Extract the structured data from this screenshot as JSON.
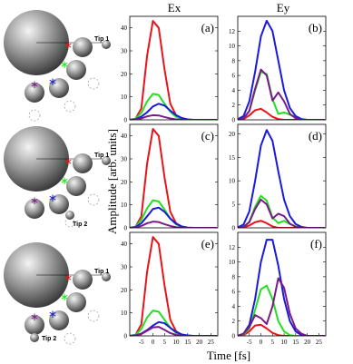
{
  "figure": {
    "column_titles": [
      "Ex",
      "Ey"
    ],
    "ylabel": "Amplitude [arb. units]",
    "xlabel": "Time [fs]"
  },
  "diagrams": [
    {
      "tip_labels": [
        "Tip 1"
      ]
    },
    {
      "tip_labels": [
        "Tip 1",
        "Tip 2"
      ]
    },
    {
      "tip_labels": [
        "Tip 1",
        "Tip 2"
      ]
    }
  ],
  "chart_data": [
    {
      "type": "line",
      "label": "(a)",
      "x": [
        -10,
        -7.5,
        -5,
        -2.5,
        0,
        2.5,
        5,
        7.5,
        10,
        12.5,
        15,
        17.5,
        20,
        22.5,
        25,
        27.5
      ],
      "xlim": [
        -10,
        28
      ],
      "ylim": [
        0,
        45
      ],
      "yticks": [
        0,
        10,
        20,
        30,
        40
      ],
      "series": [
        {
          "color": "#e8141a",
          "values": [
            0,
            0.5,
            5,
            28,
            43,
            40,
            22,
            7,
            2,
            0.5,
            0,
            0,
            0,
            0,
            0,
            0
          ]
        },
        {
          "color": "#22e01e",
          "values": [
            0,
            0.5,
            3,
            8,
            11.3,
            10.8,
            7,
            3.5,
            1.3,
            0.4,
            0.1,
            0,
            0,
            0,
            0,
            0
          ]
        },
        {
          "color": "#1a1adc",
          "values": [
            0,
            0.2,
            1.4,
            3.3,
            5.8,
            7,
            6.2,
            4,
            2,
            0.8,
            0.2,
            0,
            0,
            0,
            0,
            0
          ]
        },
        {
          "color": "#7a1a8a",
          "values": [
            0,
            0.1,
            0.6,
            1.5,
            2,
            1.9,
            1.2,
            0.6,
            0.2,
            0.1,
            0,
            0,
            0,
            0,
            0,
            0
          ]
        }
      ]
    },
    {
      "type": "line",
      "label": "(b)",
      "x": [
        -10,
        -7.5,
        -5,
        -2.5,
        0,
        2.5,
        5,
        7.5,
        10,
        12.5,
        15,
        17.5,
        20,
        22.5,
        25,
        27.5
      ],
      "xlim": [
        -10,
        28
      ],
      "ylim": [
        0,
        14
      ],
      "yticks": [
        0,
        2,
        4,
        6,
        8,
        10,
        12
      ],
      "series": [
        {
          "color": "#e8141a",
          "values": [
            0,
            0.1,
            0.6,
            1.3,
            1.5,
            1,
            0.4,
            0.1,
            0,
            0,
            0,
            0,
            0,
            0,
            0,
            0
          ]
        },
        {
          "color": "#22e01e",
          "values": [
            0,
            0.2,
            1.2,
            4,
            6.5,
            6.2,
            2.8,
            0.8,
            1,
            0.7,
            0.4,
            0.1,
            0,
            0,
            0,
            0
          ]
        },
        {
          "color": "#1a1adc",
          "values": [
            0.1,
            0.5,
            2.5,
            6.5,
            11.3,
            13.4,
            12,
            8,
            4,
            1.6,
            0.5,
            0.1,
            0,
            0,
            0,
            0
          ]
        },
        {
          "color": "#7a1a8a",
          "values": [
            0,
            0.2,
            1.2,
            4.2,
            6.8,
            6,
            2.6,
            3.7,
            2.5,
            0.8,
            0.2,
            0,
            0,
            0,
            0,
            0
          ]
        }
      ]
    },
    {
      "type": "line",
      "label": "(c)",
      "x": [
        -10,
        -7.5,
        -5,
        -2.5,
        0,
        2.5,
        5,
        7.5,
        10,
        12.5,
        15,
        17.5,
        20,
        22.5,
        25,
        27.5
      ],
      "xlim": [
        -10,
        28
      ],
      "ylim": [
        0,
        45
      ],
      "yticks": [
        0,
        10,
        20,
        30,
        40
      ],
      "series": [
        {
          "color": "#e8141a",
          "values": [
            0,
            0.5,
            5,
            28,
            43,
            40,
            22,
            7,
            2,
            0.5,
            0,
            0,
            0,
            0,
            0,
            0
          ]
        },
        {
          "color": "#22e01e",
          "values": [
            0,
            0.5,
            3.5,
            8.5,
            12,
            11.5,
            8,
            4,
            1.5,
            0.5,
            0.1,
            0,
            0,
            0,
            0,
            0
          ]
        },
        {
          "color": "#1a1adc",
          "values": [
            0,
            0.3,
            2,
            5,
            8.2,
            8.8,
            7,
            4,
            1.8,
            0.6,
            0.1,
            0,
            0,
            0,
            0,
            0
          ]
        },
        {
          "color": "#7a1a8a",
          "values": [
            0,
            0.1,
            0.8,
            2,
            2.7,
            2.5,
            1.6,
            0.8,
            0.3,
            0.1,
            0,
            0,
            0,
            0,
            0,
            0
          ]
        }
      ]
    },
    {
      "type": "line",
      "label": "(d)",
      "x": [
        -10,
        -7.5,
        -5,
        -2.5,
        0,
        2.5,
        5,
        7.5,
        10,
        12.5,
        15,
        17.5,
        20,
        22.5,
        25,
        27.5
      ],
      "xlim": [
        -10,
        28
      ],
      "ylim": [
        0,
        22
      ],
      "yticks": [
        0,
        5,
        10,
        15,
        20
      ],
      "series": [
        {
          "color": "#e8141a",
          "values": [
            0,
            0.1,
            0.5,
            1.2,
            1.5,
            1,
            0.3,
            0,
            0,
            0,
            0,
            0,
            0,
            0,
            0,
            0
          ]
        },
        {
          "color": "#22e01e",
          "values": [
            0,
            0.2,
            1.3,
            4.5,
            6.8,
            5.8,
            2.2,
            1,
            1.5,
            0.8,
            0.3,
            0.1,
            0,
            0,
            0,
            0
          ]
        },
        {
          "color": "#1a1adc",
          "values": [
            0.1,
            0.7,
            3.5,
            10,
            17.5,
            20.8,
            18.5,
            12,
            6,
            2.5,
            0.8,
            0.2,
            0,
            0,
            0,
            0
          ]
        },
        {
          "color": "#7a1a8a",
          "values": [
            0,
            0.2,
            1.2,
            4,
            6,
            5,
            2,
            3,
            2.5,
            0.9,
            0.2,
            0,
            0,
            0,
            0,
            0
          ]
        }
      ]
    },
    {
      "type": "line",
      "label": "(e)",
      "x": [
        -10,
        -7.5,
        -5,
        -2.5,
        0,
        2.5,
        5,
        7.5,
        10,
        12.5,
        15,
        17.5,
        20,
        22.5,
        25,
        27.5
      ],
      "xlim": [
        -10,
        28
      ],
      "ylim": [
        0,
        45
      ],
      "yticks": [
        0,
        10,
        20,
        30,
        40
      ],
      "xticks": [
        -5,
        0,
        5,
        10,
        15,
        20,
        25
      ],
      "series": [
        {
          "color": "#e8141a",
          "values": [
            0,
            0.5,
            5,
            28,
            43,
            40,
            22,
            7,
            2,
            0.5,
            0,
            0,
            0,
            0,
            0,
            0
          ]
        },
        {
          "color": "#22e01e",
          "values": [
            0,
            0.5,
            3,
            8,
            11,
            10.5,
            7,
            3.5,
            1.3,
            0.4,
            0.1,
            0,
            0,
            0,
            0,
            0
          ]
        },
        {
          "color": "#1a1adc",
          "values": [
            0,
            0.2,
            1,
            2.5,
            4.5,
            6,
            5.5,
            3.5,
            1.7,
            0.6,
            0.2,
            0,
            0,
            0,
            0,
            0
          ]
        },
        {
          "color": "#7a1a8a",
          "values": [
            0,
            0.1,
            0.8,
            2.2,
            3.7,
            3.9,
            2.6,
            1.2,
            0.4,
            0.1,
            0,
            0,
            0,
            0,
            0,
            0
          ]
        }
      ]
    },
    {
      "type": "line",
      "label": "(f)",
      "x": [
        -10,
        -7.5,
        -5,
        -2.5,
        0,
        2.5,
        5,
        7.5,
        10,
        12.5,
        15,
        17.5,
        20,
        22.5,
        25,
        27.5
      ],
      "xlim": [
        -10,
        28
      ],
      "ylim": [
        0,
        14
      ],
      "yticks": [
        0,
        2,
        4,
        6,
        8,
        10,
        12
      ],
      "xticks": [
        -5,
        0,
        5,
        10,
        15,
        20,
        25
      ],
      "series": [
        {
          "color": "#e8141a",
          "values": [
            0,
            0.1,
            0.6,
            1.4,
            1.5,
            1,
            0.4,
            0.1,
            0,
            0,
            0,
            0,
            0,
            0,
            0,
            0
          ]
        },
        {
          "color": "#22e01e",
          "values": [
            0,
            0.2,
            1,
            3.5,
            6.3,
            6.8,
            5,
            2,
            0.6,
            0.1,
            0,
            0,
            0,
            0,
            0,
            0
          ]
        },
        {
          "color": "#1a1adc",
          "values": [
            0,
            0.3,
            1.5,
            5,
            10,
            13,
            13,
            9.5,
            5,
            2,
            0.6,
            0.1,
            0,
            0,
            0,
            0
          ]
        },
        {
          "color": "#7a1a8a",
          "values": [
            0,
            0.3,
            1.2,
            2.8,
            2.4,
            1.6,
            4,
            7.8,
            6.5,
            3,
            1,
            0.3,
            0,
            0,
            0,
            0
          ]
        }
      ]
    }
  ]
}
